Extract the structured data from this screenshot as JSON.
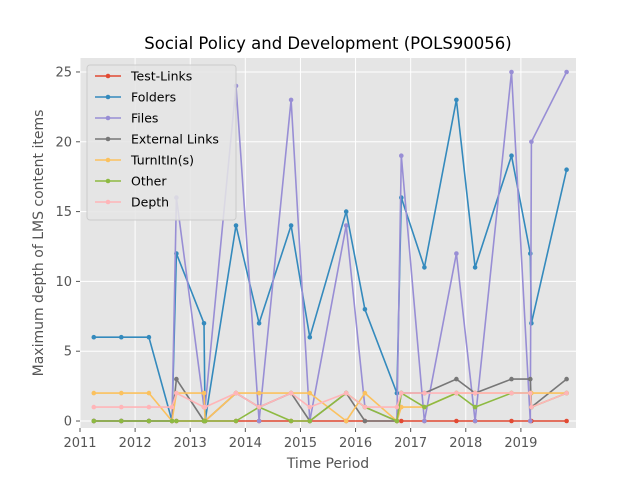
{
  "chart_data": {
    "type": "line",
    "title": "Social Policy and Development (POLS90056)",
    "xlabel": "Time Period",
    "ylabel": "Maximum depth of LMS content items",
    "xlim": [
      2011.0,
      2020.0
    ],
    "ylim": [
      -0.5,
      26.0
    ],
    "xticks": [
      2011,
      2012,
      2013,
      2014,
      2015,
      2016,
      2017,
      2018,
      2019
    ],
    "yticks": [
      0,
      5,
      10,
      15,
      20,
      25
    ],
    "grid": true,
    "legend_position": "top-left",
    "x": [
      2011.25,
      2011.75,
      2012.25,
      2012.67,
      2012.75,
      2013.25,
      2013.27,
      2013.83,
      2014.25,
      2014.83,
      2015.17,
      2015.83,
      2016.17,
      2016.75,
      2016.83,
      2017.25,
      2017.83,
      2018.17,
      2018.83,
      2019.17,
      2019.19,
      2019.83
    ],
    "series": [
      {
        "name": "Test-Links",
        "color": "#E24A33",
        "values": [
          0,
          0,
          0,
          0,
          0,
          0,
          0,
          0,
          0,
          0,
          0,
          0,
          0,
          0,
          0,
          0,
          0,
          0,
          0,
          0,
          0,
          0
        ]
      },
      {
        "name": "Folders",
        "color": "#348ABD",
        "values": [
          6,
          6,
          6,
          0,
          12,
          7,
          0,
          14,
          7,
          14,
          6,
          15,
          8,
          2,
          16,
          11,
          23,
          11,
          19,
          12,
          7,
          18
        ]
      },
      {
        "name": "Files",
        "color": "#988ED5",
        "values": [
          0,
          0,
          0,
          0,
          16,
          1,
          1,
          24,
          0,
          23,
          0,
          14,
          1,
          0,
          19,
          0,
          12,
          0,
          25,
          0,
          20,
          25
        ]
      },
      {
        "name": "External Links",
        "color": "#777777",
        "values": [
          0,
          0,
          0,
          0,
          3,
          0,
          0,
          2,
          1,
          2,
          0,
          2,
          0,
          0,
          2,
          2,
          3,
          2,
          3,
          3,
          1,
          3
        ]
      },
      {
        "name": "TurnItIn(s)",
        "color": "#FBC15E",
        "values": [
          2,
          2,
          2,
          0,
          2,
          2,
          0,
          2,
          2,
          2,
          2,
          0,
          2,
          0,
          1,
          1,
          2,
          2,
          2,
          2,
          2,
          2
        ]
      },
      {
        "name": "Other",
        "color": "#8EBA42",
        "values": [
          0,
          0,
          0,
          0,
          0,
          0,
          0,
          0,
          1,
          0,
          0,
          2,
          1,
          0,
          2,
          1,
          2,
          1,
          2,
          2,
          1,
          2
        ]
      },
      {
        "name": "Depth",
        "color": "#FFB5B8",
        "values": [
          1,
          1,
          1,
          1,
          2,
          1,
          1,
          2,
          1,
          2,
          1,
          2,
          1,
          1,
          2,
          2,
          2,
          2,
          2,
          2,
          1,
          2
        ]
      }
    ]
  }
}
